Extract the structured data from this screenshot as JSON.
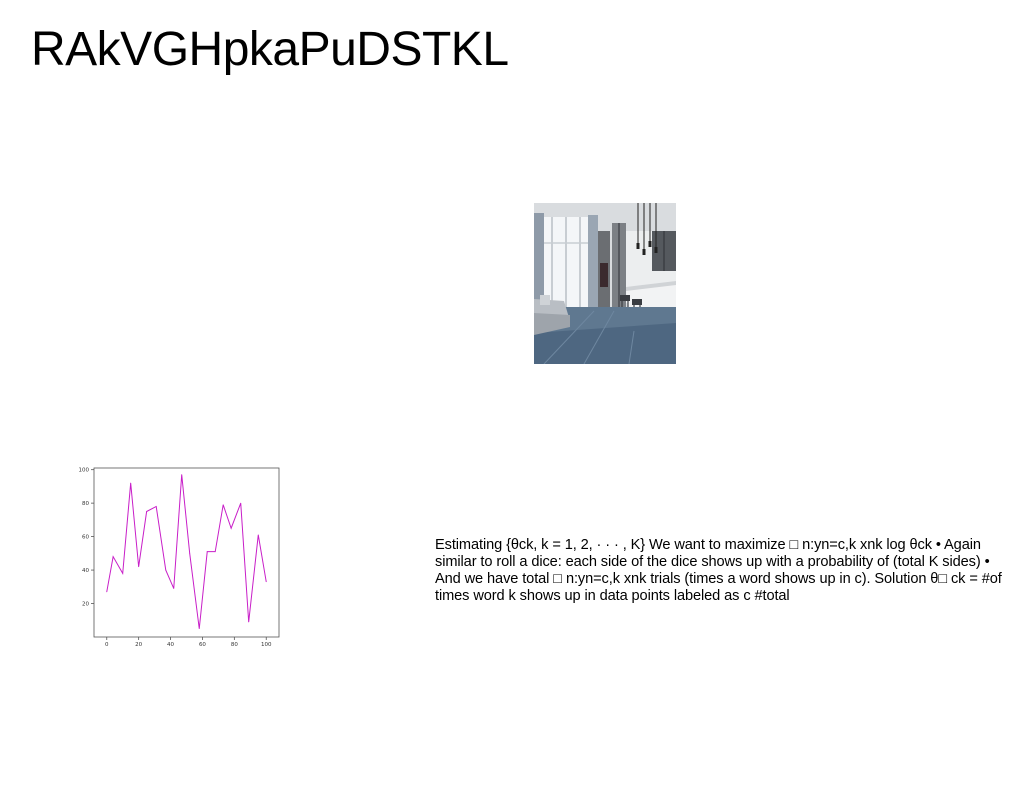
{
  "slide": {
    "title": "RAkVGHpkaPuDSTKL",
    "body_text": "Estimating {θck, k = 1, 2, · · · , K} We want to maximize □ n:yn=c,k xnk log θck • Again similar to roll a dice: each side of the dice shows up with a probability of (total K sides) • And we have total □ n:yn=c,k xnk trials (times a word shows up in c). Solution θ□ ck = #of times word k shows up in data points labeled as c #total"
  },
  "photo": {
    "icon": "interior-room-photo"
  },
  "chart_data": {
    "type": "line",
    "x": [
      0,
      4,
      10,
      15,
      20,
      25,
      31,
      37,
      42,
      47,
      52,
      58,
      63,
      68,
      73,
      78,
      84,
      89,
      95,
      100
    ],
    "series": [
      {
        "color": "#c81ec8",
        "values": [
          27,
          48,
          38,
          92,
          42,
          75,
          78,
          40,
          29,
          97,
          50,
          5,
          51,
          51,
          79,
          65,
          80,
          9,
          61,
          33
        ]
      }
    ],
    "xticks": [
      0,
      20,
      40,
      60,
      80,
      100
    ],
    "yticks": [
      20,
      40,
      60,
      80,
      100
    ],
    "xlim": [
      -8,
      108
    ],
    "ylim": [
      0,
      101
    ],
    "title": "",
    "xlabel": "",
    "ylabel": "",
    "grid": false
  }
}
